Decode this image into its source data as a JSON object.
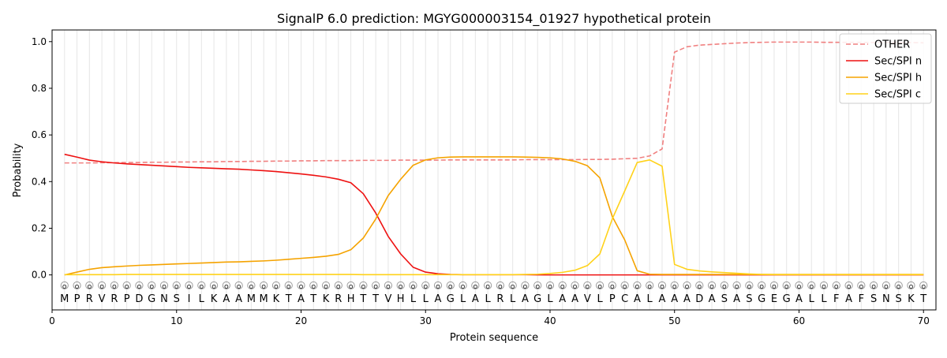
{
  "chart_data": {
    "type": "line",
    "title": "SignalP 6.0 prediction: MGYG000003154_01927 hypothetical protein",
    "xlabel": "Protein sequence",
    "ylabel": "Probability",
    "xlim": [
      0,
      71
    ],
    "ylim": [
      -0.15,
      1.05
    ],
    "x_ticks": [
      0,
      10,
      20,
      30,
      40,
      50,
      60,
      70
    ],
    "y_ticks": [
      0.0,
      0.2,
      0.4,
      0.6,
      0.8,
      1.0
    ],
    "y_tick_labels": [
      "0.0",
      "0.2",
      "0.4",
      "0.6",
      "0.8",
      "1.0"
    ],
    "grid": "vertical lines at each residue",
    "legend_position": "top-right",
    "sequence": [
      "M",
      "P",
      "R",
      "V",
      "R",
      "P",
      "D",
      "G",
      "N",
      "S",
      "I",
      "L",
      "K",
      "A",
      "A",
      "M",
      "M",
      "K",
      "T",
      "A",
      "T",
      "K",
      "R",
      "H",
      "T",
      "T",
      "V",
      "H",
      "L",
      "L",
      "A",
      "G",
      "L",
      "A",
      "L",
      "R",
      "L",
      "A",
      "G",
      "L",
      "A",
      "A",
      "V",
      "L",
      "P",
      "C",
      "A",
      "L",
      "A",
      "A",
      "A",
      "D",
      "A",
      "S",
      "A",
      "S",
      "G",
      "E",
      "G",
      "A",
      "L",
      "L",
      "F",
      "A",
      "F",
      "S",
      "N",
      "S",
      "K",
      "T"
    ],
    "predicted_label": "O",
    "series": [
      {
        "name": "OTHER",
        "color": "#f08080",
        "dash": "dashed",
        "values": [
          0.48,
          0.48,
          0.48,
          0.481,
          0.481,
          0.482,
          0.482,
          0.483,
          0.483,
          0.484,
          0.484,
          0.485,
          0.485,
          0.486,
          0.486,
          0.487,
          0.487,
          0.488,
          0.488,
          0.489,
          0.489,
          0.49,
          0.49,
          0.49,
          0.491,
          0.491,
          0.491,
          0.492,
          0.492,
          0.492,
          0.492,
          0.493,
          0.493,
          0.493,
          0.493,
          0.493,
          0.493,
          0.494,
          0.494,
          0.494,
          0.494,
          0.494,
          0.495,
          0.495,
          0.496,
          0.498,
          0.5,
          0.51,
          0.54,
          0.955,
          0.978,
          0.985,
          0.988,
          0.991,
          0.994,
          0.996,
          0.997,
          0.998,
          0.998,
          0.998,
          0.998,
          0.997,
          0.997,
          0.997,
          0.997,
          0.996,
          0.996,
          0.996,
          0.996,
          0.995
        ]
      },
      {
        "name": "Sec/SPI n",
        "color": "#ee1111",
        "dash": "solid",
        "values": [
          0.517,
          0.505,
          0.492,
          0.485,
          0.48,
          0.476,
          0.473,
          0.47,
          0.467,
          0.464,
          0.461,
          0.459,
          0.457,
          0.455,
          0.453,
          0.45,
          0.447,
          0.443,
          0.438,
          0.433,
          0.427,
          0.42,
          0.41,
          0.395,
          0.348,
          0.265,
          0.165,
          0.09,
          0.033,
          0.012,
          0.005,
          0.002,
          0.001,
          0.001,
          0.001,
          0.001,
          0.001,
          0.001,
          0.0,
          0.0,
          0.0,
          0.0,
          0.0,
          0.0,
          0.0,
          0.0,
          0.0,
          0.0,
          0.0,
          0.0,
          0.0,
          0.0,
          0.0,
          0.0,
          0.0,
          0.0,
          0.0,
          0.0,
          0.0,
          0.0,
          0.0,
          0.0,
          0.0,
          0.0,
          0.0,
          0.0,
          0.0,
          0.0,
          0.0,
          0.0
        ]
      },
      {
        "name": "Sec/SPI h",
        "color": "#f5a300",
        "dash": "solid",
        "values": [
          0.0,
          0.012,
          0.024,
          0.031,
          0.035,
          0.038,
          0.041,
          0.043,
          0.045,
          0.047,
          0.049,
          0.051,
          0.053,
          0.055,
          0.056,
          0.058,
          0.06,
          0.063,
          0.067,
          0.071,
          0.075,
          0.08,
          0.088,
          0.108,
          0.158,
          0.24,
          0.34,
          0.41,
          0.47,
          0.493,
          0.502,
          0.505,
          0.506,
          0.506,
          0.506,
          0.506,
          0.506,
          0.505,
          0.504,
          0.502,
          0.497,
          0.487,
          0.468,
          0.416,
          0.25,
          0.15,
          0.018,
          0.003,
          0.002,
          0.002,
          0.002,
          0.002,
          0.002,
          0.002,
          0.002,
          0.002,
          0.002,
          0.002,
          0.002,
          0.002,
          0.002,
          0.002,
          0.002,
          0.002,
          0.002,
          0.002,
          0.002,
          0.002,
          0.002,
          0.002
        ]
      },
      {
        "name": "Sec/SPI c",
        "color": "#ffd21a",
        "dash": "solid",
        "values": [
          0.001,
          0.001,
          0.001,
          0.001,
          0.001,
          0.002,
          0.002,
          0.002,
          0.002,
          0.002,
          0.002,
          0.002,
          0.002,
          0.002,
          0.002,
          0.002,
          0.002,
          0.002,
          0.002,
          0.002,
          0.002,
          0.002,
          0.002,
          0.002,
          0.001,
          0.001,
          0.001,
          0.001,
          0.001,
          0.001,
          0.001,
          0.001,
          0.001,
          0.001,
          0.001,
          0.001,
          0.001,
          0.002,
          0.003,
          0.006,
          0.011,
          0.02,
          0.04,
          0.09,
          0.24,
          0.36,
          0.482,
          0.493,
          0.466,
          0.045,
          0.024,
          0.017,
          0.013,
          0.01,
          0.007,
          0.004,
          0.002,
          0.001,
          0.001,
          0.001,
          0.001,
          0.001,
          0.001,
          0.001,
          0.001,
          0.001,
          0.001,
          0.001,
          0.001,
          0.001
        ]
      }
    ]
  }
}
